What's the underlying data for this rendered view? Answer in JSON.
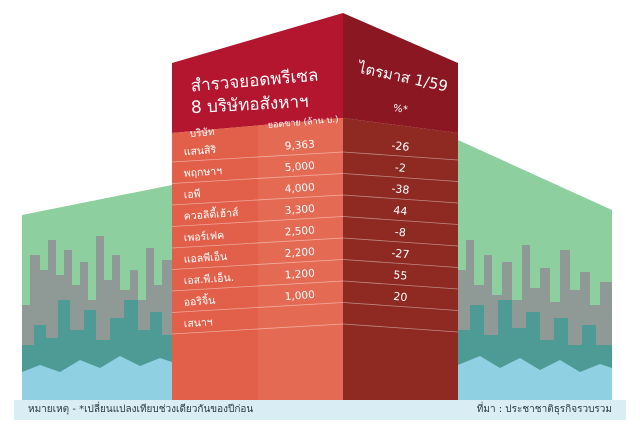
{
  "title_line1": "สำรวจยอดพรีเซล",
  "title_line2": "8 บริษัทอสังหาฯ",
  "quarter_label": "ไตรมาส 1/59",
  "column_headers": {
    "company": "บริษัท",
    "sales": "ยอดขาย (ล้าน บ.)",
    "change": "%*"
  },
  "chart_data": {
    "type": "table",
    "rows": [
      {
        "company": "แสนสิริ",
        "sales": "9,363",
        "change": "-26"
      },
      {
        "company": "พฤกษาฯ",
        "sales": "5,000",
        "change": "-2"
      },
      {
        "company": "เอพี",
        "sales": "4,000",
        "change": "-38"
      },
      {
        "company": "ควอลิตี้เฮ้าส์",
        "sales": "3,300",
        "change": "44"
      },
      {
        "company": "เพอร์เฟค",
        "sales": "2,500",
        "change": "-8"
      },
      {
        "company": "แอลพีเอ็น",
        "sales": "2,200",
        "change": "-27"
      },
      {
        "company": "เอส.พี.เอ็น.",
        "sales": "1,200",
        "change": "55"
      },
      {
        "company": "ออริจิ้น",
        "sales": "1,000",
        "change": "20"
      },
      {
        "company": "เสนาฯ",
        "sales": "",
        "change": ""
      }
    ]
  },
  "footnote": "หมายเหตุ - *เปลี่ยนแปลงเทียบช่วงเดียวกันของปีก่อน",
  "source": "ที่มา : ประชาชาติธุรกิจรวบรวม",
  "colors": {
    "red_top": "#b3162e",
    "red_side": "#8a1722",
    "front": "#e2604a",
    "side": "#8e2a22",
    "skyline_green": "#8dcf9f",
    "skyline_teal": "#5fb3ad",
    "skyline_blue": "#8fd0e3",
    "skyline_gray": "#8f9a96"
  }
}
